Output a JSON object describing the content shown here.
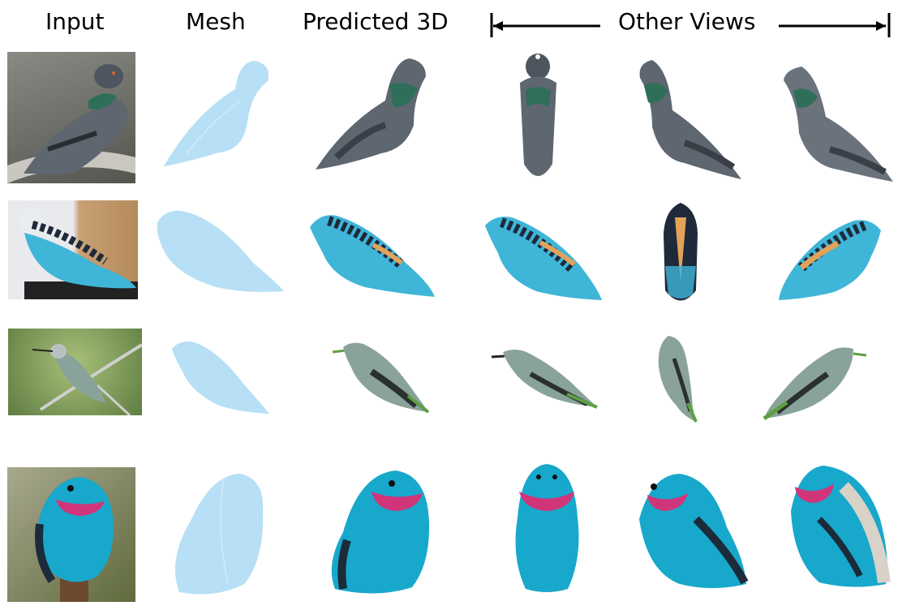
{
  "headers": {
    "input": "Input",
    "mesh": "Mesh",
    "predicted": "Predicted 3D",
    "other_views": "Other Views"
  },
  "rows": [
    {
      "subject": "pigeon",
      "photo_bg": "#6f6f6a",
      "body_color": "#5e6670",
      "accent_color": "#2f6f5a",
      "wing_color": "#3a3f47"
    },
    {
      "subject": "budgerigar",
      "photo_bg": "#c8a074",
      "body_color": "#3fb5d8",
      "accent_color": "#1e2a3a",
      "wing_color": "#e3a25a"
    },
    {
      "subject": "hummingbird",
      "photo_bg": "#7d9a5a",
      "body_color": "#8aa39a",
      "accent_color": "#5da043",
      "wing_color": "#2a2f30"
    },
    {
      "subject": "cotinga",
      "photo_bg": "#8a8a6a",
      "body_color": "#18a8cc",
      "accent_color": "#d0357a",
      "wing_color": "#1b2b3a"
    }
  ],
  "mesh_color": "#b7dff5"
}
